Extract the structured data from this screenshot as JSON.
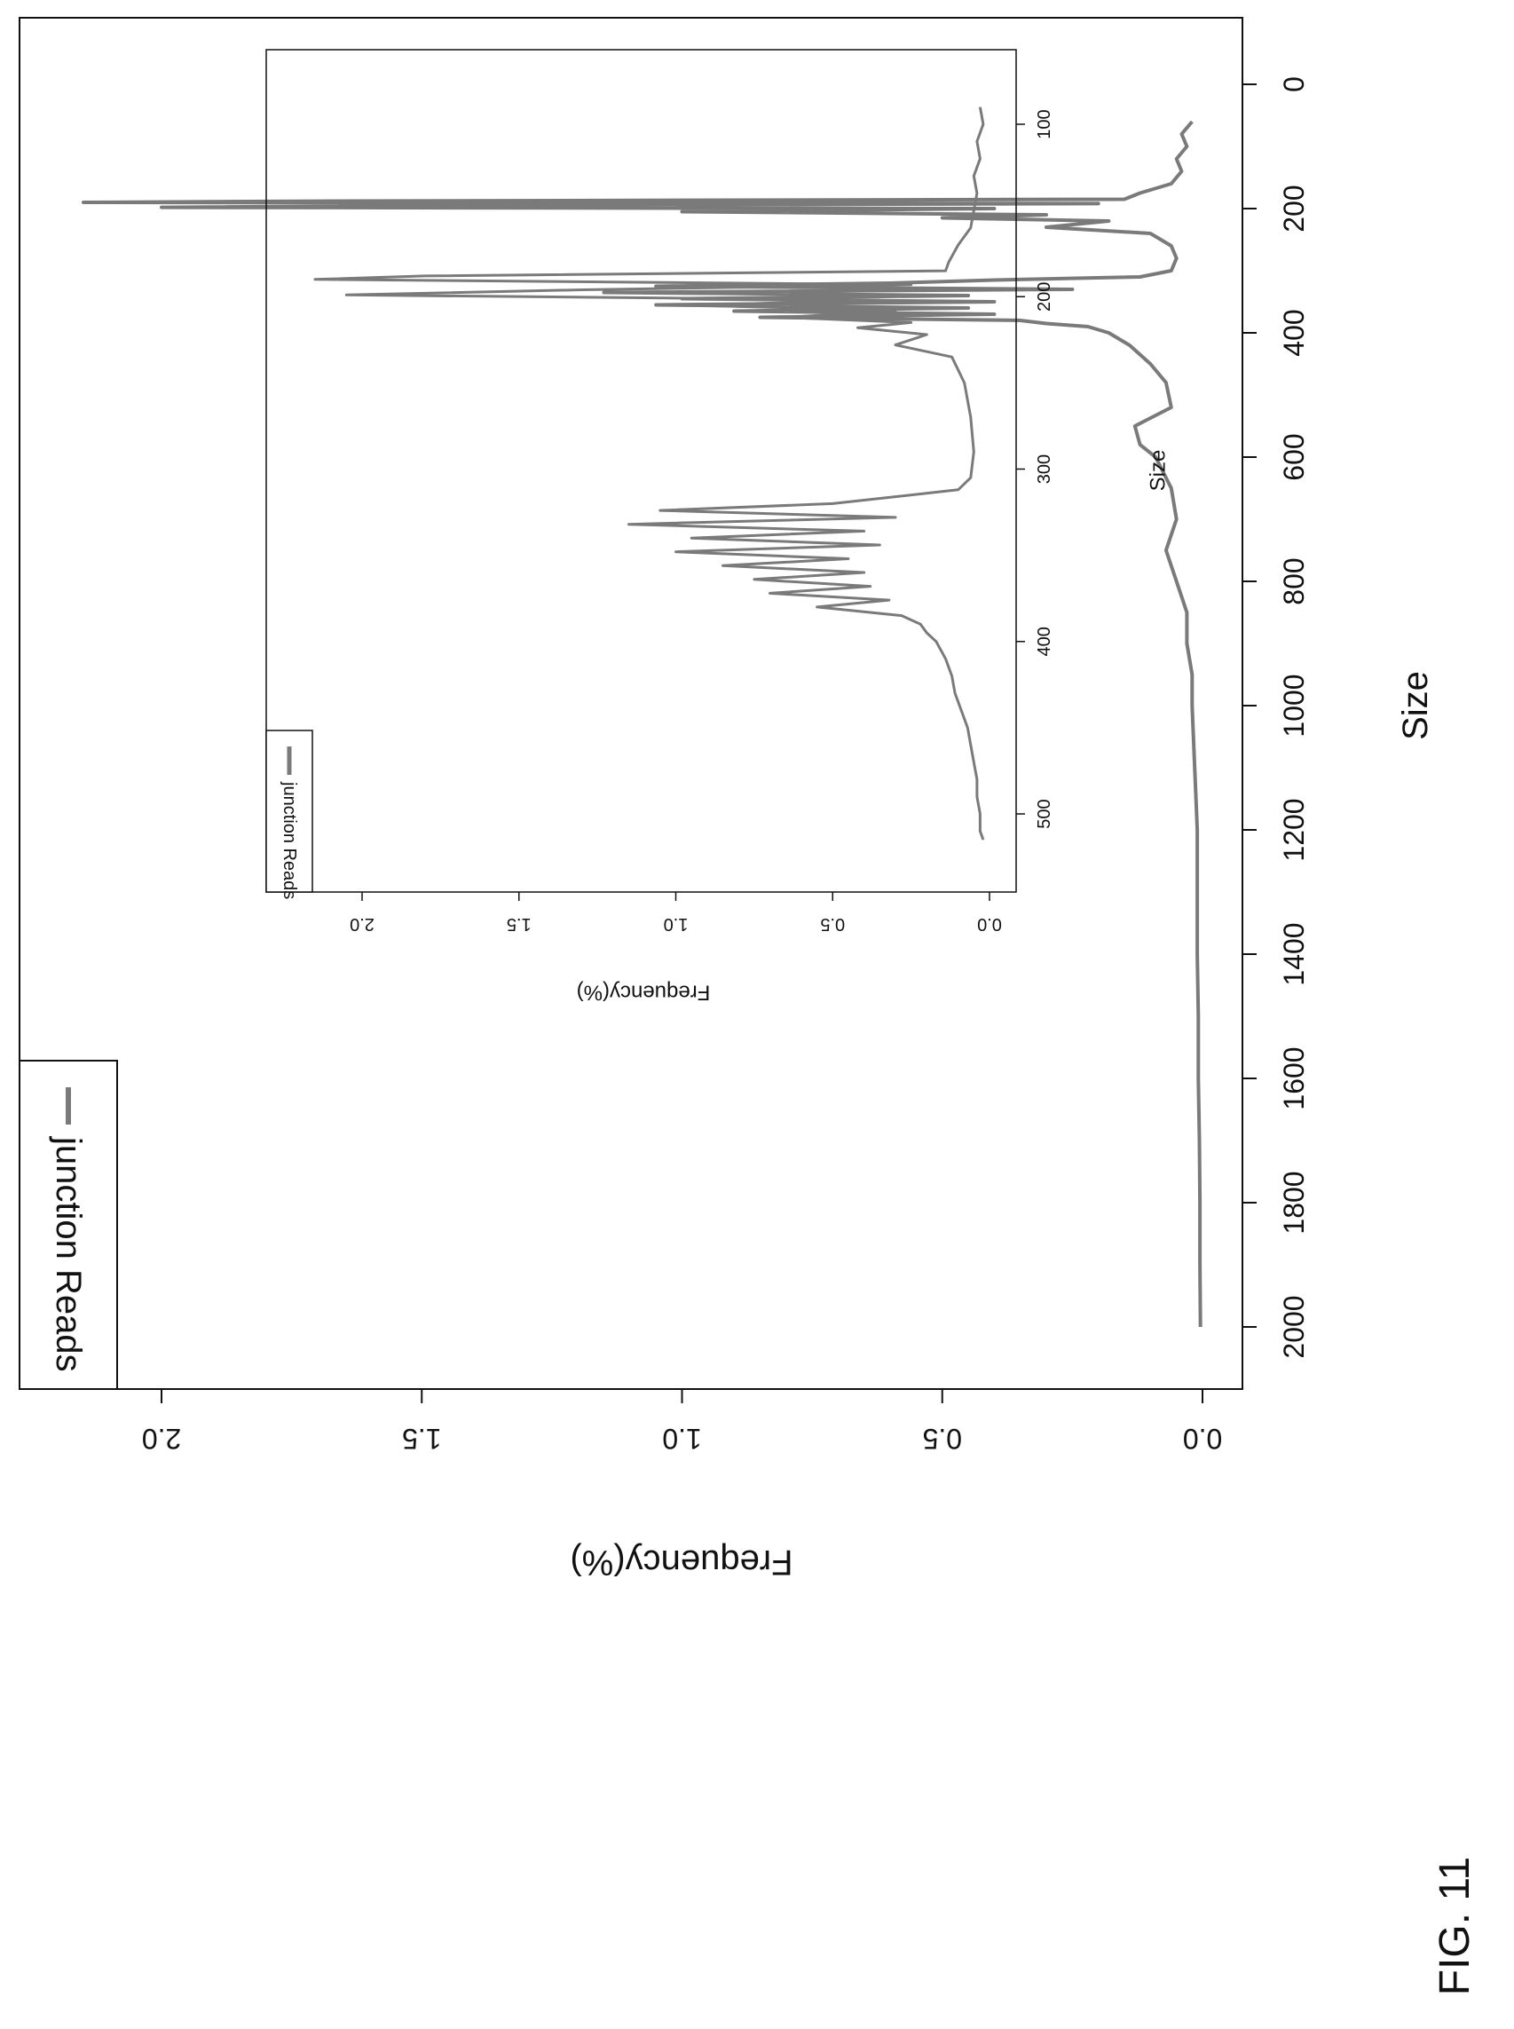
{
  "figure": {
    "label": "FIG. 11"
  },
  "colors": {
    "series": "#7a7a7a",
    "axis": "#111111",
    "background": "#ffffff"
  },
  "chart_data": [
    {
      "type": "line",
      "xlabel": "Size",
      "ylabel": "Frequency(%)",
      "xlim": [
        0,
        2000
      ],
      "ylim": [
        0,
        2.2
      ],
      "x_ticks": [
        "0",
        "200",
        "400",
        "600",
        "800",
        "1000",
        "1200",
        "1400",
        "1600",
        "1800",
        "2000"
      ],
      "y_ticks": [
        "0.0",
        "0.5",
        "1.0",
        "1.5",
        "2.0"
      ],
      "legend": {
        "position": "top-left",
        "entries": [
          "junction Reads"
        ]
      },
      "grid": false,
      "series": [
        {
          "name": "junction Reads",
          "points": [
            [
              60,
              0.02
            ],
            [
              80,
              0.04
            ],
            [
              100,
              0.03
            ],
            [
              120,
              0.05
            ],
            [
              140,
              0.04
            ],
            [
              160,
              0.06
            ],
            [
              175,
              0.12
            ],
            [
              185,
              0.15
            ],
            [
              188,
              1.7
            ],
            [
              190,
              2.15
            ],
            [
              192,
              0.2
            ],
            [
              195,
              1.4
            ],
            [
              198,
              2.0
            ],
            [
              200,
              0.4
            ],
            [
              205,
              1.0
            ],
            [
              210,
              0.3
            ],
            [
              215,
              0.5
            ],
            [
              220,
              0.18
            ],
            [
              230,
              0.3
            ],
            [
              240,
              0.1
            ],
            [
              260,
              0.06
            ],
            [
              280,
              0.05
            ],
            [
              300,
              0.06
            ],
            [
              310,
              0.12
            ],
            [
              315,
              0.4
            ],
            [
              320,
              0.6
            ],
            [
              325,
              1.05
            ],
            [
              330,
              0.25
            ],
            [
              335,
              1.15
            ],
            [
              340,
              0.45
            ],
            [
              345,
              1.0
            ],
            [
              350,
              0.4
            ],
            [
              355,
              1.05
            ],
            [
              360,
              0.45
            ],
            [
              365,
              0.9
            ],
            [
              370,
              0.4
            ],
            [
              375,
              0.85
            ],
            [
              380,
              0.35
            ],
            [
              385,
              0.3
            ],
            [
              390,
              0.22
            ],
            [
              400,
              0.18
            ],
            [
              420,
              0.14
            ],
            [
              450,
              0.1
            ],
            [
              480,
              0.07
            ],
            [
              520,
              0.06
            ],
            [
              550,
              0.13
            ],
            [
              580,
              0.12
            ],
            [
              600,
              0.09
            ],
            [
              650,
              0.06
            ],
            [
              700,
              0.05
            ],
            [
              750,
              0.07
            ],
            [
              800,
              0.05
            ],
            [
              850,
              0.03
            ],
            [
              900,
              0.03
            ],
            [
              950,
              0.02
            ],
            [
              1000,
              0.02
            ],
            [
              1100,
              0.015
            ],
            [
              1200,
              0.01
            ],
            [
              1300,
              0.01
            ],
            [
              1400,
              0.01
            ],
            [
              1500,
              0.008
            ],
            [
              1600,
              0.008
            ],
            [
              1700,
              0.006
            ],
            [
              1800,
              0.005
            ],
            [
              1900,
              0.005
            ],
            [
              2000,
              0.004
            ]
          ]
        }
      ]
    },
    {
      "type": "line",
      "xlabel": "Size",
      "ylabel": "Frequency(%)",
      "xlim": [
        85,
        520
      ],
      "ylim": [
        0,
        2.2
      ],
      "x_ticks": [
        "100",
        "200",
        "300",
        "400",
        "500"
      ],
      "y_ticks": [
        "0.0",
        "0.5",
        "1.0",
        "1.5",
        "2.0"
      ],
      "legend": {
        "position": "top-left",
        "entries": [
          "junction Reads"
        ]
      },
      "grid": false,
      "series": [
        {
          "name": "junction Reads",
          "points": [
            [
              90,
              0.03
            ],
            [
              100,
              0.02
            ],
            [
              110,
              0.04
            ],
            [
              120,
              0.03
            ],
            [
              130,
              0.05
            ],
            [
              140,
              0.04
            ],
            [
              150,
              0.05
            ],
            [
              160,
              0.06
            ],
            [
              170,
              0.1
            ],
            [
              180,
              0.13
            ],
            [
              185,
              0.14
            ],
            [
              188,
              1.8
            ],
            [
              190,
              2.15
            ],
            [
              193,
              0.25
            ],
            [
              196,
              1.3
            ],
            [
              199,
              2.05
            ],
            [
              202,
              0.35
            ],
            [
              205,
              0.95
            ],
            [
              208,
              0.3
            ],
            [
              212,
              0.65
            ],
            [
              215,
              0.25
            ],
            [
              218,
              0.42
            ],
            [
              222,
              0.2
            ],
            [
              228,
              0.3
            ],
            [
              235,
              0.12
            ],
            [
              250,
              0.08
            ],
            [
              270,
              0.06
            ],
            [
              290,
              0.05
            ],
            [
              305,
              0.06
            ],
            [
              312,
              0.1
            ],
            [
              316,
              0.3
            ],
            [
              320,
              0.5
            ],
            [
              324,
              1.05
            ],
            [
              328,
              0.3
            ],
            [
              332,
              1.15
            ],
            [
              336,
              0.4
            ],
            [
              340,
              0.95
            ],
            [
              344,
              0.35
            ],
            [
              348,
              1.0
            ],
            [
              352,
              0.45
            ],
            [
              356,
              0.85
            ],
            [
              360,
              0.4
            ],
            [
              364,
              0.75
            ],
            [
              368,
              0.38
            ],
            [
              372,
              0.7
            ],
            [
              376,
              0.32
            ],
            [
              380,
              0.55
            ],
            [
              385,
              0.28
            ],
            [
              390,
              0.22
            ],
            [
              395,
              0.2
            ],
            [
              400,
              0.17
            ],
            [
              410,
              0.14
            ],
            [
              420,
              0.12
            ],
            [
              430,
              0.11
            ],
            [
              440,
              0.09
            ],
            [
              450,
              0.07
            ],
            [
              460,
              0.06
            ],
            [
              470,
              0.05
            ],
            [
              480,
              0.04
            ],
            [
              490,
              0.04
            ],
            [
              500,
              0.03
            ],
            [
              510,
              0.03
            ],
            [
              515,
              0.02
            ]
          ]
        }
      ]
    }
  ]
}
